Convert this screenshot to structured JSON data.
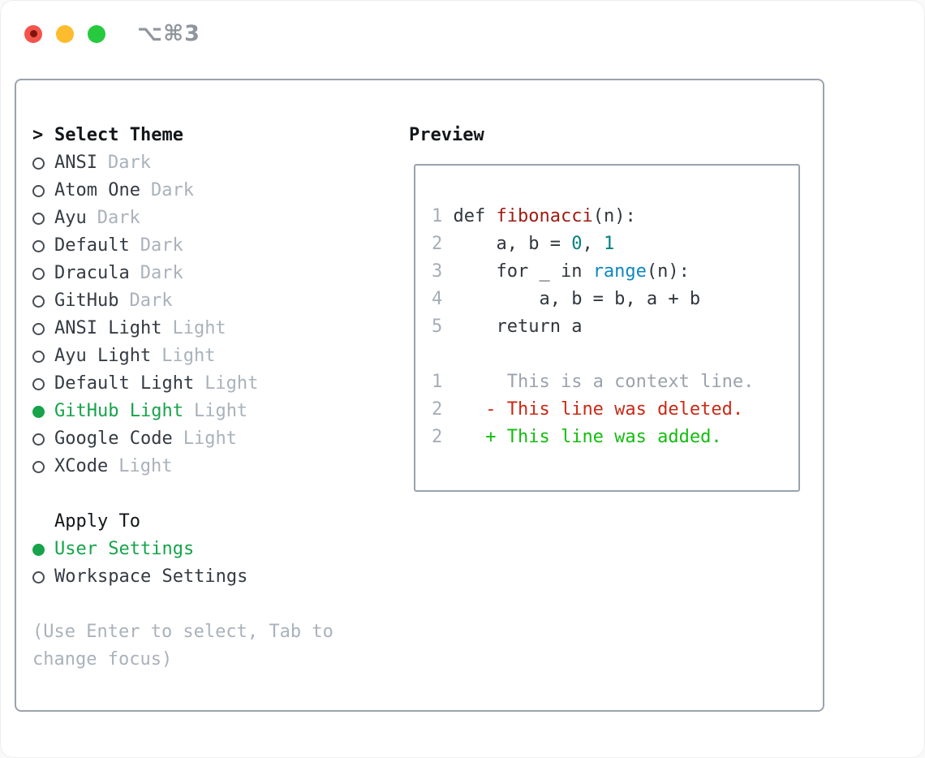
{
  "window": {
    "title": "⌥⌘3"
  },
  "titlebar": {
    "buttons": [
      {
        "name": "close"
      },
      {
        "name": "minimize"
      },
      {
        "name": "maximize"
      }
    ]
  },
  "theme_panel": {
    "header_caret": ">",
    "header_label": "Select Theme",
    "items": [
      {
        "name": "ANSI",
        "tag": "Dark",
        "selected": false
      },
      {
        "name": "Atom One",
        "tag": "Dark",
        "selected": false
      },
      {
        "name": "Ayu",
        "tag": "Dark",
        "selected": false
      },
      {
        "name": "Default",
        "tag": "Dark",
        "selected": false
      },
      {
        "name": "Dracula",
        "tag": "Dark",
        "selected": false
      },
      {
        "name": "GitHub",
        "tag": "Dark",
        "selected": false
      },
      {
        "name": "ANSI Light",
        "tag": "Light",
        "selected": false
      },
      {
        "name": "Ayu Light",
        "tag": "Light",
        "selected": false
      },
      {
        "name": "Default Light",
        "tag": "Light",
        "selected": false
      },
      {
        "name": "GitHub Light",
        "tag": "Light",
        "selected": true
      },
      {
        "name": "Google Code",
        "tag": "Light",
        "selected": false
      },
      {
        "name": "XCode",
        "tag": "Light",
        "selected": false
      }
    ],
    "apply_header": "Apply To",
    "apply_options": [
      {
        "label": "User Settings",
        "selected": true
      },
      {
        "label": "Workspace Settings",
        "selected": false
      }
    ],
    "hint_lines": [
      "(Use Enter to select, Tab to",
      "change focus)"
    ]
  },
  "preview": {
    "label": "Preview",
    "lines": [
      {
        "num": "1",
        "segments": [
          {
            "text": "def ",
            "style": "code"
          },
          {
            "text": "fibonacci",
            "style": "fn"
          },
          {
            "text": "(n):",
            "style": "code"
          }
        ]
      },
      {
        "num": "2",
        "segments": [
          {
            "text": "    a, b = ",
            "style": "code"
          },
          {
            "text": "0",
            "style": "num"
          },
          {
            "text": ", ",
            "style": "code"
          },
          {
            "text": "1",
            "style": "num"
          }
        ]
      },
      {
        "num": "3",
        "segments": [
          {
            "text": "    for _ in ",
            "style": "code"
          },
          {
            "text": "range",
            "style": "builtin"
          },
          {
            "text": "(n):",
            "style": "code"
          }
        ]
      },
      {
        "num": "4",
        "segments": [
          {
            "text": "        a, b = b, a + b",
            "style": "code"
          }
        ]
      },
      {
        "num": "5",
        "segments": [
          {
            "text": "    return a",
            "style": "code"
          }
        ]
      },
      {
        "num": "",
        "segments": []
      },
      {
        "num": "1",
        "segments": [
          {
            "text": "     This is a context line.",
            "style": "context"
          }
        ]
      },
      {
        "num": "2",
        "segments": [
          {
            "text": "   - This line was deleted.",
            "style": "deleted"
          }
        ]
      },
      {
        "num": "2",
        "segments": [
          {
            "text": "   + This line was added.",
            "style": "added"
          }
        ]
      }
    ]
  },
  "colors": {
    "accent_green": "#16a34a",
    "diff_added": "#13bd0f",
    "diff_deleted": "#c92a16",
    "code_function": "#9e1b10",
    "code_number": "#008080",
    "code_builtin": "#0e87c0",
    "code_text": "#30363d",
    "muted": "#a9b2bc",
    "line_number": "#a4adb8",
    "context_gray": "#9aa3ad",
    "border_gray": "#9aa3ae",
    "item_text": "#343b43",
    "header_text": "#131619",
    "title_gray": "#8f959d",
    "light_red": "#f4544c",
    "light_red_dot": "#7e160e",
    "light_yellow": "#fdbc2e",
    "light_green": "#27c93f"
  }
}
